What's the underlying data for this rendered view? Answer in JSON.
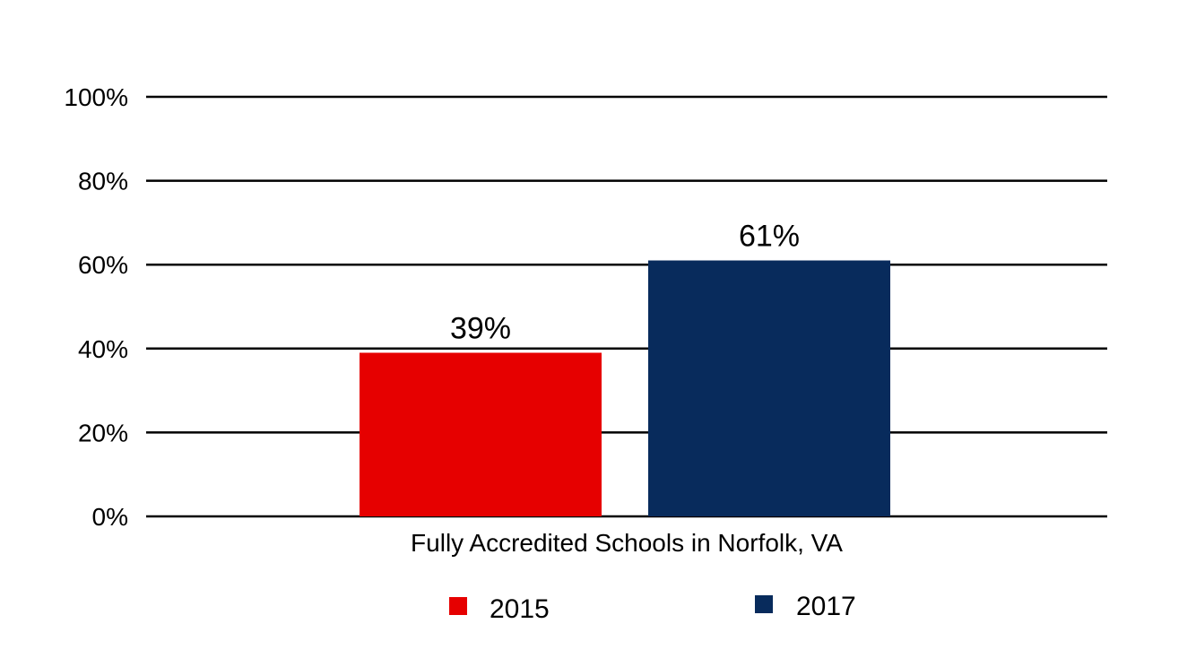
{
  "chart_data": {
    "type": "bar",
    "categories": [
      "Fully Accredited Schools in Norfolk, VA"
    ],
    "series": [
      {
        "name": "2015",
        "values": [
          39
        ],
        "color": "#e60000",
        "label": "39%"
      },
      {
        "name": "2017",
        "values": [
          61
        ],
        "color": "#082b5c",
        "label": "61%"
      }
    ],
    "ylim": [
      0,
      100
    ],
    "yticks": [
      0,
      20,
      40,
      60,
      80,
      100
    ],
    "ytick_labels": [
      "0%",
      "20%",
      "40%",
      "60%",
      "80%",
      "100%"
    ],
    "grid": true,
    "legend_position": "bottom",
    "title": "",
    "xlabel": "",
    "ylabel": ""
  }
}
